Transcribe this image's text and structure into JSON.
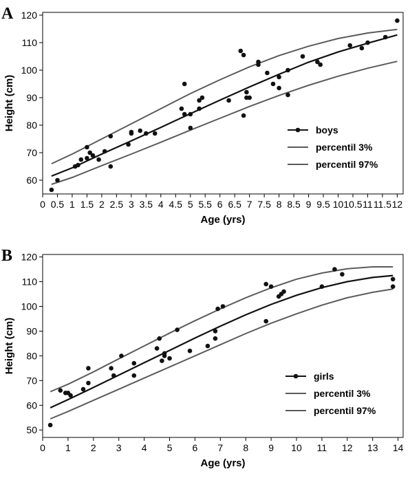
{
  "chart_data": [
    {
      "type": "scatter",
      "panel_label": "A",
      "xlabel": "Age (yrs)",
      "ylabel": "Height (cm)",
      "xlim": [
        0,
        12.2
      ],
      "ylim": [
        55,
        121
      ],
      "xticks": [
        "0",
        "0.5",
        "1",
        "1.5",
        "2",
        "2.5",
        "3",
        "3.5",
        "4",
        "4.5",
        "5",
        "5.5",
        "6",
        "6.5",
        "7",
        "7.5",
        "8",
        "8.5",
        "9",
        "9.5",
        "10",
        "10.5",
        "11",
        "11.5",
        "12"
      ],
      "yticks": [
        "60",
        "70",
        "80",
        "90",
        "100",
        "110",
        "120"
      ],
      "grid": false,
      "legend_position": "bottom-right",
      "series": [
        {
          "name": "boys",
          "mark": "point+line",
          "color": "#111111",
          "points": [
            [
              0.3,
              56.5
            ],
            [
              0.5,
              60
            ],
            [
              1.1,
              65
            ],
            [
              1.2,
              65.5
            ],
            [
              1.3,
              67.5
            ],
            [
              1.5,
              68
            ],
            [
              1.5,
              72
            ],
            [
              1.6,
              70
            ],
            [
              1.7,
              69
            ],
            [
              1.9,
              67.5
            ],
            [
              2.1,
              70.5
            ],
            [
              2.3,
              65
            ],
            [
              2.3,
              76
            ],
            [
              2.9,
              73
            ],
            [
              3.0,
              77
            ],
            [
              3.0,
              77.5
            ],
            [
              3.3,
              78
            ],
            [
              3.5,
              77
            ],
            [
              3.8,
              77
            ],
            [
              4.7,
              86
            ],
            [
              4.8,
              84
            ],
            [
              4.8,
              95
            ],
            [
              5.0,
              79
            ],
            [
              5.0,
              84
            ],
            [
              5.3,
              86
            ],
            [
              5.3,
              89
            ],
            [
              5.4,
              90
            ],
            [
              6.3,
              89
            ],
            [
              6.7,
              107
            ],
            [
              6.8,
              83.5
            ],
            [
              6.8,
              105.5
            ],
            [
              6.9,
              90
            ],
            [
              6.9,
              92
            ],
            [
              7.0,
              90
            ],
            [
              7.3,
              102
            ],
            [
              7.3,
              103
            ],
            [
              7.6,
              99
            ],
            [
              7.8,
              95
            ],
            [
              8.0,
              93.5
            ],
            [
              8.0,
              97.5
            ],
            [
              8.3,
              91
            ],
            [
              8.3,
              100
            ],
            [
              8.8,
              105
            ],
            [
              9.3,
              103
            ],
            [
              9.4,
              102
            ],
            [
              10.4,
              109
            ],
            [
              10.8,
              108
            ],
            [
              11.0,
              110
            ],
            [
              11.6,
              112
            ],
            [
              12.0,
              118
            ]
          ],
          "fit": [
            [
              0.3,
              61.5
            ],
            [
              1,
              64.5
            ],
            [
              2,
              69.5
            ],
            [
              3,
              74.3
            ],
            [
              4,
              79.2
            ],
            [
              5,
              84.2
            ],
            [
              6,
              89.1
            ],
            [
              7,
              93.9
            ],
            [
              8,
              98.5
            ],
            [
              9,
              102.9
            ],
            [
              10,
              106.6
            ],
            [
              11,
              109.8
            ],
            [
              12,
              112.8
            ]
          ]
        },
        {
          "name": "percentil 3%",
          "mark": "line",
          "color": "#5a5a5a",
          "fit": [
            [
              0.3,
              58.5
            ],
            [
              1,
              61
            ],
            [
              2,
              65.3
            ],
            [
              3,
              69.5
            ],
            [
              4,
              73.8
            ],
            [
              5,
              78.2
            ],
            [
              6,
              82.5
            ],
            [
              7,
              86.8
            ],
            [
              8,
              90.8
            ],
            [
              9,
              94.5
            ],
            [
              10,
              97.8
            ],
            [
              11,
              100.7
            ],
            [
              12,
              103.2
            ]
          ]
        },
        {
          "name": "percentil 97%",
          "mark": "line",
          "color": "#5a5a5a",
          "fit": [
            [
              0.3,
              66
            ],
            [
              1,
              69.5
            ],
            [
              2,
              75
            ],
            [
              3,
              80.5
            ],
            [
              4,
              86
            ],
            [
              5,
              91.5
            ],
            [
              6,
              96.5
            ],
            [
              7,
              101.2
            ],
            [
              8,
              105.3
            ],
            [
              9,
              108.7
            ],
            [
              10,
              111.5
            ],
            [
              11,
              113.5
            ],
            [
              12,
              114.8
            ]
          ]
        }
      ]
    },
    {
      "type": "scatter",
      "panel_label": "B",
      "xlabel": "Age (yrs)",
      "ylabel": "Height (cm)",
      "xlim": [
        0,
        14.2
      ],
      "ylim": [
        47,
        121
      ],
      "xticks": [
        "0",
        "1",
        "2",
        "3",
        "4",
        "5",
        "6",
        "7",
        "8",
        "9",
        "10",
        "11",
        "12",
        "13",
        "14"
      ],
      "yticks": [
        "50",
        "60",
        "70",
        "80",
        "90",
        "100",
        "110",
        "120"
      ],
      "grid": false,
      "legend_position": "bottom-right",
      "series": [
        {
          "name": "girls",
          "mark": "point+line",
          "color": "#111111",
          "points": [
            [
              0.3,
              52
            ],
            [
              0.7,
              66
            ],
            [
              0.9,
              65
            ],
            [
              1.0,
              65
            ],
            [
              1.1,
              64
            ],
            [
              1.6,
              66.5
            ],
            [
              1.8,
              69
            ],
            [
              1.8,
              75
            ],
            [
              2.7,
              75
            ],
            [
              2.8,
              72
            ],
            [
              3.1,
              80
            ],
            [
              3.6,
              77
            ],
            [
              3.6,
              72
            ],
            [
              4.5,
              83
            ],
            [
              4.6,
              87
            ],
            [
              4.7,
              78
            ],
            [
              4.8,
              80
            ],
            [
              4.8,
              81
            ],
            [
              5.0,
              79
            ],
            [
              5.3,
              90.5
            ],
            [
              5.8,
              82
            ],
            [
              6.5,
              84
            ],
            [
              6.8,
              87
            ],
            [
              6.8,
              90
            ],
            [
              6.9,
              99
            ],
            [
              7.1,
              100
            ],
            [
              8.8,
              94
            ],
            [
              8.8,
              109
            ],
            [
              9.0,
              108
            ],
            [
              9.3,
              104
            ],
            [
              9.4,
              105
            ],
            [
              9.5,
              106
            ],
            [
              11.0,
              108
            ],
            [
              11.5,
              115
            ],
            [
              11.8,
              113
            ],
            [
              13.8,
              108
            ],
            [
              13.8,
              111
            ]
          ],
          "fit": [
            [
              0.3,
              59
            ],
            [
              1,
              62.3
            ],
            [
              2,
              67.2
            ],
            [
              3,
              72.2
            ],
            [
              4,
              77.2
            ],
            [
              5,
              82.2
            ],
            [
              6,
              87.2
            ],
            [
              7,
              92
            ],
            [
              8,
              96.6
            ],
            [
              9,
              100.8
            ],
            [
              10,
              104.5
            ],
            [
              11,
              107.6
            ],
            [
              12,
              110
            ],
            [
              13,
              111.7
            ],
            [
              13.8,
              112.5
            ]
          ]
        },
        {
          "name": "percentil 3%",
          "mark": "line",
          "color": "#5a5a5a",
          "fit": [
            [
              0.3,
              54.5
            ],
            [
              1,
              57.5
            ],
            [
              2,
              62
            ],
            [
              3,
              66.5
            ],
            [
              4,
              71
            ],
            [
              5,
              75.5
            ],
            [
              6,
              80
            ],
            [
              7,
              84.5
            ],
            [
              8,
              89
            ],
            [
              9,
              93.2
            ],
            [
              10,
              97
            ],
            [
              11,
              100.5
            ],
            [
              12,
              103.5
            ],
            [
              13,
              105.7
            ],
            [
              13.8,
              107
            ]
          ]
        },
        {
          "name": "percentil 97%",
          "mark": "line",
          "color": "#5a5a5a",
          "fit": [
            [
              0.3,
              65.5
            ],
            [
              1,
              68.5
            ],
            [
              2,
              73.5
            ],
            [
              3,
              78.8
            ],
            [
              4,
              84
            ],
            [
              5,
              89.2
            ],
            [
              6,
              94.2
            ],
            [
              7,
              99
            ],
            [
              8,
              103.5
            ],
            [
              9,
              107.5
            ],
            [
              10,
              111
            ],
            [
              11,
              113.5
            ],
            [
              12,
              115.2
            ],
            [
              13,
              116
            ],
            [
              13.8,
              116
            ]
          ]
        }
      ]
    }
  ]
}
